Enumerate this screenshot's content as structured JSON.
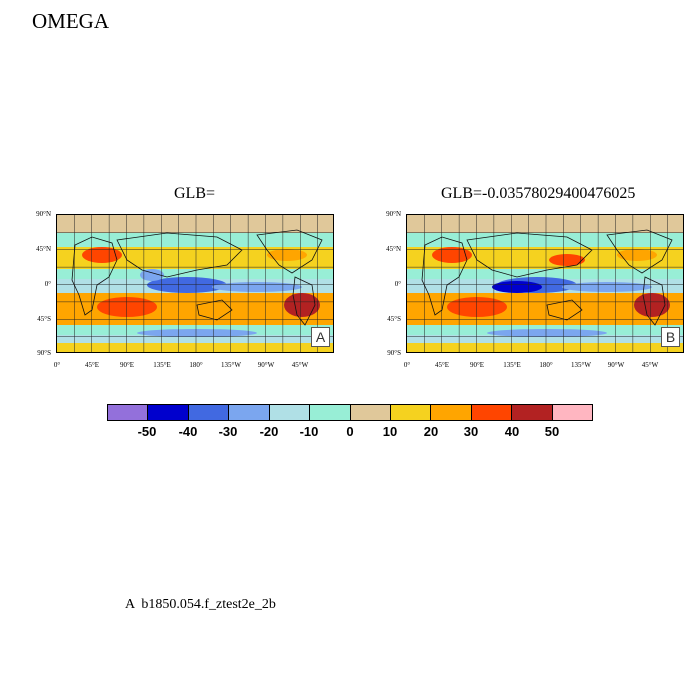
{
  "title": "OMEGA",
  "panels": [
    {
      "heading": "GLB=",
      "tag": "A"
    },
    {
      "heading": "GLB=-0.03578029400476025",
      "tag": "B"
    }
  ],
  "axes": {
    "lat_labels": [
      "90°N",
      "45°N",
      "0°",
      "45°S",
      "90°S"
    ],
    "lon_labels": [
      "0°",
      "45°E",
      "90°E",
      "135°E",
      "180°",
      "135°W",
      "90°W",
      "45°W"
    ]
  },
  "colorbar": {
    "colors": [
      "#9370db",
      "#0000cd",
      "#4169e1",
      "#7ba6ef",
      "#b0e0e6",
      "#98eed6",
      "#e0c89a",
      "#f5d21f",
      "#ffa500",
      "#ff4500",
      "#b22222",
      "#ffb6c1"
    ],
    "labels": [
      "-50",
      "-40",
      "-30",
      "-20",
      "-10",
      "0",
      "10",
      "20",
      "30",
      "40",
      "50"
    ]
  },
  "caption": "A  b1850.054.f_ztest2e_2b"
}
